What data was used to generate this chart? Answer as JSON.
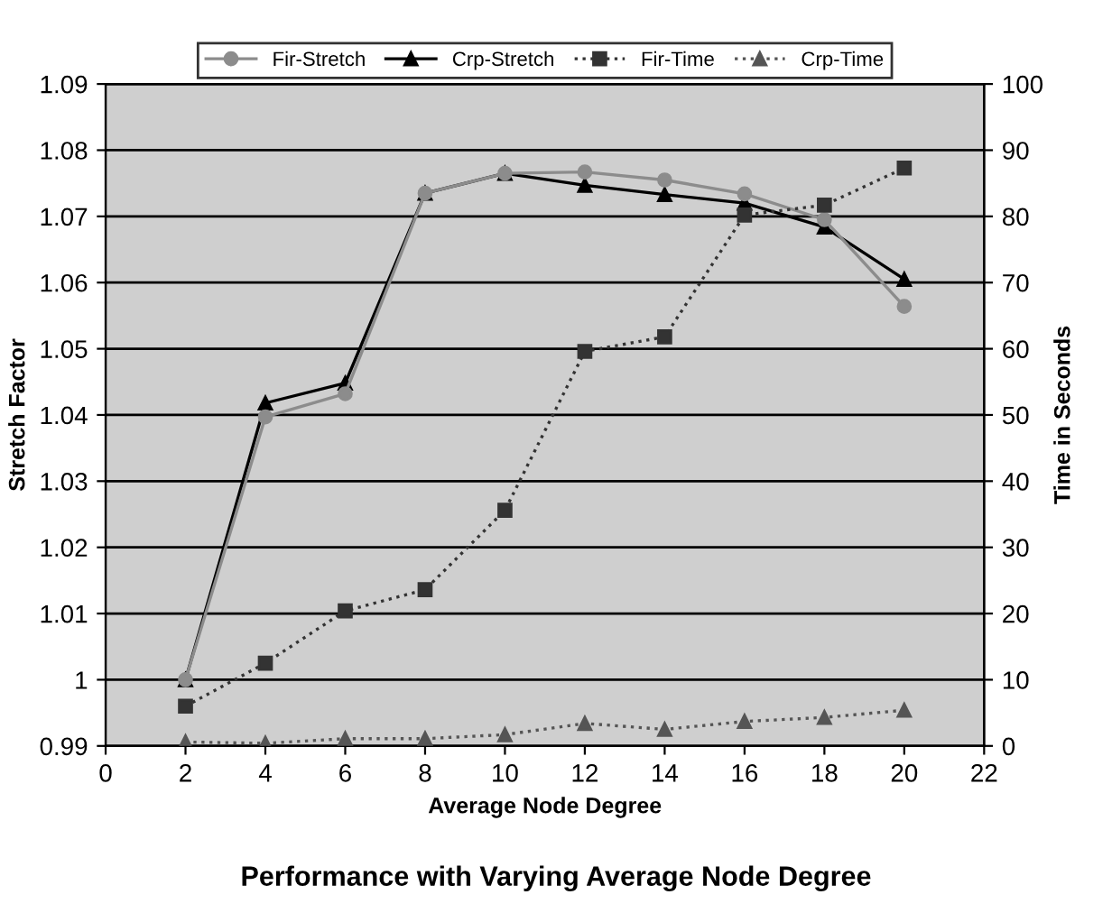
{
  "chart_data": {
    "type": "line",
    "title": "Performance with Varying Average Node Degree",
    "xlabel": "Average Node Degree",
    "ylabel": "Stretch Factor",
    "y2label": "Time in Seconds",
    "x": [
      2,
      4,
      6,
      8,
      10,
      12,
      14,
      16,
      18,
      20
    ],
    "series": [
      {
        "name": "Fir-Stretch",
        "color": "#8c8c8c",
        "marker": "circle",
        "line_style": "solid",
        "values": [
          1.0,
          1.0397,
          1.0432,
          1.0735,
          1.0765,
          1.0767,
          1.0755,
          1.0734,
          1.0695,
          1.0564
        ]
      },
      {
        "name": "Crp-Stretch",
        "color": "#000000",
        "marker": "triangle",
        "line_style": "solid",
        "values": [
          1.0,
          1.0418,
          1.0448,
          1.0735,
          1.0765,
          1.0747,
          1.0733,
          1.072,
          1.0684,
          1.0605
        ]
      },
      {
        "name": "Fir-Time",
        "color": "#333333",
        "marker": "square",
        "line_style": "dotted",
        "axis": "y2",
        "values": [
          6.0,
          12.5,
          20.4,
          23.6,
          35.6,
          59.6,
          61.8,
          80.2,
          81.7,
          87.3
        ]
      },
      {
        "name": "Crp-Time",
        "color": "#555555",
        "marker": "triangle",
        "line_style": "dotted",
        "axis": "y2",
        "values": [
          0.6,
          0.4,
          1.1,
          1.1,
          1.7,
          3.4,
          2.5,
          3.7,
          4.3,
          5.4
        ]
      }
    ],
    "xlim": [
      0,
      22
    ],
    "xticks": [
      0,
      2,
      4,
      6,
      8,
      10,
      12,
      14,
      16,
      18,
      20,
      22
    ],
    "ylim": [
      0.99,
      1.09
    ],
    "yticks": [
      {
        "value": 0.99,
        "label": "0.99"
      },
      {
        "value": 1.0,
        "label": "1"
      },
      {
        "value": 1.01,
        "label": "1.01"
      },
      {
        "value": 1.02,
        "label": "1.02"
      },
      {
        "value": 1.03,
        "label": "1.03"
      },
      {
        "value": 1.04,
        "label": "1.04"
      },
      {
        "value": 1.05,
        "label": "1.05"
      },
      {
        "value": 1.06,
        "label": "1.06"
      },
      {
        "value": 1.07,
        "label": "1.07"
      },
      {
        "value": 1.08,
        "label": "1.08"
      },
      {
        "value": 1.09,
        "label": "1.09"
      }
    ],
    "y2lim": [
      0,
      100
    ],
    "y2ticks": [
      0,
      10,
      20,
      30,
      40,
      50,
      60,
      70,
      80,
      90,
      100
    ],
    "grid": "y",
    "legend": "top"
  }
}
